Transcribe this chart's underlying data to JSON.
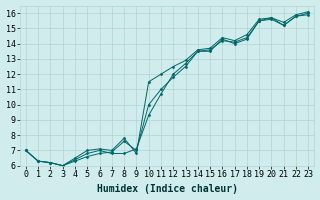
{
  "xlabel": "Humidex (Indice chaleur)",
  "ylabel": "",
  "xlim": [
    -0.5,
    23.5
  ],
  "ylim": [
    6,
    16.5
  ],
  "xticks": [
    0,
    1,
    2,
    3,
    4,
    5,
    6,
    7,
    8,
    9,
    10,
    11,
    12,
    13,
    14,
    15,
    16,
    17,
    18,
    19,
    20,
    21,
    22,
    23
  ],
  "yticks": [
    6,
    7,
    8,
    9,
    10,
    11,
    12,
    13,
    14,
    15,
    16
  ],
  "bg_color": "#d0ecec",
  "line_color": "#006868",
  "grid_color": "#b0d4d4",
  "series": [
    [
      7.0,
      6.3,
      6.2,
      6.0,
      6.3,
      6.6,
      6.8,
      6.9,
      7.6,
      7.0,
      10.0,
      11.0,
      11.8,
      12.5,
      13.5,
      13.6,
      14.2,
      14.1,
      14.4,
      15.5,
      15.7,
      15.2,
      15.8,
      16.0
    ],
    [
      7.0,
      6.3,
      6.2,
      6.0,
      6.5,
      7.0,
      7.1,
      7.0,
      7.8,
      6.8,
      11.5,
      12.0,
      12.5,
      12.9,
      13.6,
      13.7,
      14.4,
      14.2,
      14.6,
      15.6,
      15.7,
      15.4,
      15.9,
      16.1
    ],
    [
      7.0,
      6.3,
      6.2,
      6.0,
      6.4,
      6.8,
      7.0,
      6.8,
      6.8,
      7.1,
      9.3,
      10.7,
      12.0,
      12.7,
      13.5,
      13.5,
      14.3,
      14.0,
      14.3,
      15.5,
      15.6,
      15.2,
      15.8,
      15.9
    ]
  ],
  "xlabel_fontsize": 7,
  "tick_fontsize": 6,
  "figsize": [
    3.2,
    2.0
  ],
  "dpi": 100
}
